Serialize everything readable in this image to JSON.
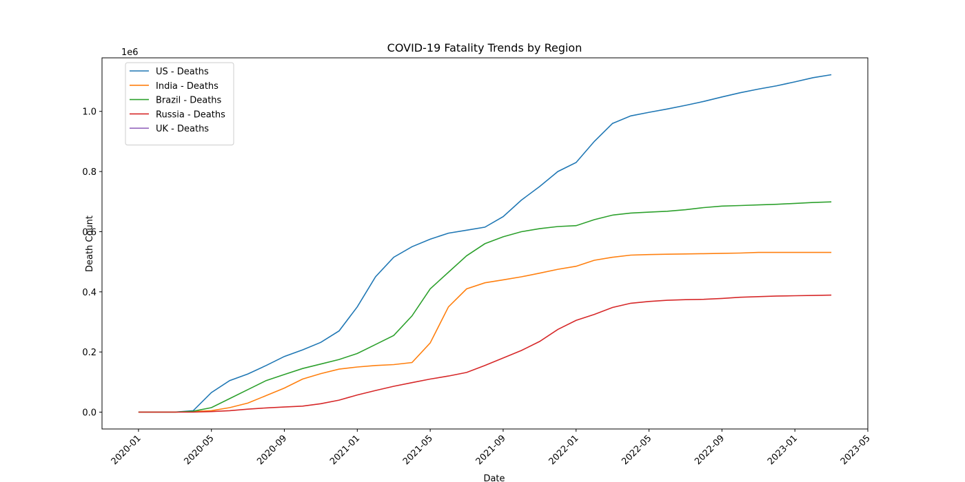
{
  "chart_data": {
    "type": "line",
    "title": "COVID-19 Fatality Trends by Region",
    "xlabel": "Date",
    "ylabel": "Death Count",
    "offset_label": "1e6",
    "x": [
      "2020-01",
      "2020-02",
      "2020-03",
      "2020-04",
      "2020-05",
      "2020-06",
      "2020-07",
      "2020-08",
      "2020-09",
      "2020-10",
      "2020-11",
      "2020-12",
      "2021-01",
      "2021-02",
      "2021-03",
      "2021-04",
      "2021-05",
      "2021-06",
      "2021-07",
      "2021-08",
      "2021-09",
      "2021-10",
      "2021-11",
      "2021-12",
      "2022-01",
      "2022-02",
      "2022-03",
      "2022-04",
      "2022-05",
      "2022-06",
      "2022-07",
      "2022-08",
      "2022-09",
      "2022-10",
      "2022-11",
      "2022-12",
      "2023-01",
      "2023-02",
      "2023-03"
    ],
    "series": [
      {
        "name": "US - Deaths",
        "color": "#1f77b4",
        "values": [
          0,
          0,
          0,
          5000,
          65000,
          105000,
          127000,
          155000,
          185000,
          207000,
          232000,
          270000,
          350000,
          450000,
          515000,
          550000,
          575000,
          595000,
          605000,
          615000,
          650000,
          705000,
          750000,
          800000,
          830000,
          900000,
          960000,
          985000,
          997000,
          1008000,
          1020000,
          1033000,
          1048000,
          1062000,
          1074000,
          1085000,
          1098000,
          1112000,
          1122000
        ]
      },
      {
        "name": "India - Deaths",
        "color": "#ff7f0e",
        "values": [
          0,
          0,
          0,
          2000,
          5000,
          15000,
          30000,
          55000,
          80000,
          110000,
          128000,
          143000,
          150000,
          155000,
          158000,
          165000,
          230000,
          350000,
          410000,
          430000,
          440000,
          450000,
          462000,
          475000,
          485000,
          505000,
          515000,
          522000,
          524000,
          525000,
          526000,
          527000,
          528000,
          529000,
          531000,
          531000,
          531000,
          531000,
          531000
        ]
      },
      {
        "name": "Brazil - Deaths",
        "color": "#2ca02c",
        "values": [
          0,
          0,
          0,
          3000,
          15000,
          45000,
          75000,
          105000,
          125000,
          145000,
          160000,
          175000,
          195000,
          225000,
          255000,
          320000,
          410000,
          465000,
          520000,
          560000,
          583000,
          600000,
          610000,
          617000,
          620000,
          640000,
          655000,
          662000,
          665000,
          668000,
          673000,
          680000,
          685000,
          687000,
          689000,
          691000,
          694000,
          697000,
          699000
        ]
      },
      {
        "name": "Russia - Deaths",
        "color": "#d62728",
        "values": [
          0,
          0,
          0,
          0,
          2000,
          5000,
          10000,
          14000,
          17000,
          20000,
          28000,
          40000,
          57000,
          72000,
          86000,
          98000,
          110000,
          120000,
          132000,
          155000,
          180000,
          205000,
          235000,
          275000,
          305000,
          325000,
          348000,
          362000,
          368000,
          372000,
          374000,
          375000,
          378000,
          382000,
          384000,
          386000,
          387000,
          388000,
          389000
        ]
      },
      {
        "name": "UK - Deaths",
        "color": "#9467bd",
        "values": [
          null,
          null,
          null,
          null,
          null,
          null,
          null,
          null,
          null,
          null,
          null,
          null,
          null,
          null,
          null,
          null,
          null,
          null,
          null,
          null,
          null,
          null,
          null,
          null,
          null,
          null,
          null,
          null,
          null,
          null,
          null,
          null,
          null,
          null,
          null,
          null,
          null,
          null,
          null
        ]
      }
    ],
    "xlim": [
      "2019-11",
      "2023-05"
    ],
    "xticks": [
      "2020-01",
      "2020-05",
      "2020-09",
      "2021-01",
      "2021-05",
      "2021-09",
      "2022-01",
      "2022-05",
      "2022-09",
      "2023-01",
      "2023-05"
    ],
    "ylim": [
      -56000,
      1178000
    ],
    "yticks": [
      {
        "value": 0,
        "label": "0.0"
      },
      {
        "value": 200000,
        "label": "0.2"
      },
      {
        "value": 400000,
        "label": "0.4"
      },
      {
        "value": 600000,
        "label": "0.6"
      },
      {
        "value": 800000,
        "label": "0.8"
      },
      {
        "value": 1000000,
        "label": "1.0"
      }
    ],
    "legend": "upper left",
    "grid": false
  }
}
